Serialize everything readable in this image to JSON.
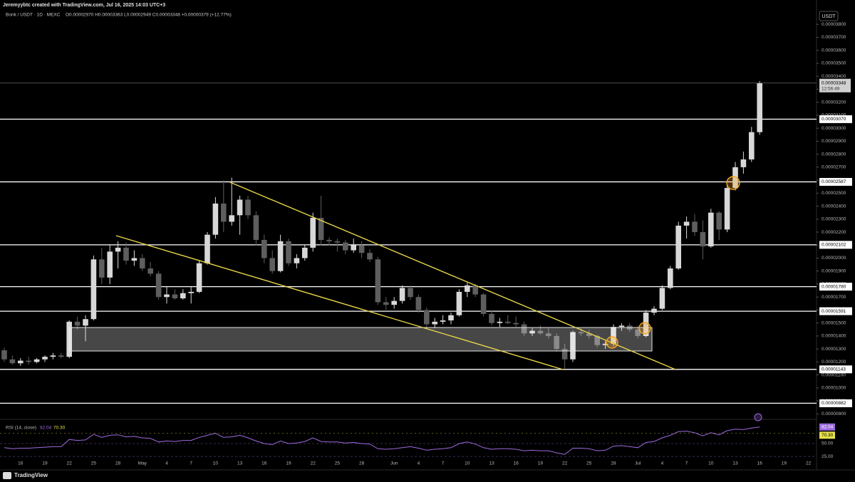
{
  "chart_data": {
    "type": "candlestick",
    "header": "Jeremyybtc created with TradingView.com, Jul 16, 2025 14:03 UTC+3",
    "symbol": "Bonk / USDT · 1D · MEXC",
    "ohlc": "O0.00002970 H0.00003363 L0.00002949 C0.00003348 +0.00000379 (+12.77%)",
    "currency": "USDT",
    "brand": "TradingView",
    "up_color": "#d8d8d8",
    "down_color": "#5e5e5e",
    "level_color": "#ffffff",
    "categories": [
      null,
      null,
      "16",
      null,
      null,
      "19",
      null,
      null,
      "22",
      null,
      null,
      "25",
      null,
      null,
      "28",
      null,
      null,
      "May",
      null,
      null,
      "4",
      null,
      null,
      "7",
      null,
      null,
      "10",
      null,
      null,
      "13",
      null,
      null,
      "16",
      null,
      null,
      "19",
      null,
      null,
      "22",
      null,
      null,
      "25",
      null,
      null,
      "28",
      null,
      null,
      null,
      "Jun",
      null,
      null,
      "4",
      null,
      null,
      "7",
      null,
      null,
      "10",
      null,
      null,
      "13",
      null,
      null,
      "16",
      null,
      null,
      "19",
      null,
      null,
      "22",
      null,
      null,
      "25",
      null,
      null,
      "28",
      null,
      null,
      "Jul",
      null,
      null,
      "4",
      null,
      null,
      "7",
      null,
      null,
      "10",
      null,
      null,
      "13",
      null,
      null,
      "16",
      null,
      null,
      "19",
      null,
      null,
      "22"
    ],
    "open": [
      1.29e-05,
      1.22e-05,
      1.19e-05,
      1.21e-05,
      1.2e-05,
      1.22e-05,
      1.24e-05,
      1.25e-05,
      1.24e-05,
      1.51e-05,
      1.48e-05,
      1.53e-05,
      1.99e-05,
      1.85e-05,
      2.05e-05,
      2.08e-05,
      1.98e-05,
      2e-05,
      1.92e-05,
      1.88e-05,
      1.7e-05,
      1.72e-05,
      1.69e-05,
      1.73e-05,
      1.74e-05,
      1.96e-05,
      2.18e-05,
      2.42e-05,
      2.28e-05,
      2.33e-05,
      2.45e-05,
      2.33e-05,
      2.14e-05,
      2e-05,
      1.9e-05,
      2.13e-05,
      1.96e-05,
      2e-05,
      2.08e-05,
      2.31e-05,
      2.14e-05,
      2.13e-05,
      2.12e-05,
      2.06e-05,
      2.1e-05,
      2.04e-05,
      1.99e-05,
      1.66e-05,
      1.64e-05,
      1.67e-05,
      1.77e-05,
      1.7e-05,
      1.6e-05,
      1.49e-05,
      1.51e-05,
      1.52e-05,
      1.56e-05,
      1.74e-05,
      1.79e-05,
      1.72e-05,
      1.57e-05,
      1.5e-05,
      1.51e-05,
      1.5e-05,
      1.49e-05,
      1.42e-05,
      1.44e-05,
      1.42e-05,
      1.4e-05,
      1.3e-05,
      1.22e-05,
      1.43e-05,
      1.42e-05,
      1.4e-05,
      1.33e-05,
      1.34e-05,
      1.47e-05,
      1.48e-05,
      1.45e-05,
      1.4e-05,
      1.58e-05,
      1.61e-05,
      1.77e-05,
      1.92e-05,
      2.25e-05,
      2.28e-05,
      2.2e-05,
      2.09e-05,
      2.35e-05,
      2.22e-05,
      2.54e-05,
      2.7e-05,
      2.76e-05,
      2.97e-05,
      null,
      null,
      null,
      null,
      null,
      null
    ],
    "high": [
      1.31e-05,
      1.25e-05,
      1.23e-05,
      1.24e-05,
      1.23e-05,
      1.25e-05,
      1.27e-05,
      1.27e-05,
      1.52e-05,
      1.55e-05,
      1.56e-05,
      2.02e-05,
      2.08e-05,
      2.1e-05,
      2.13e-05,
      2.12e-05,
      2.06e-05,
      2.03e-05,
      1.97e-05,
      1.9e-05,
      1.78e-05,
      1.76e-05,
      1.76e-05,
      1.78e-05,
      1.98e-05,
      2.2e-05,
      2.47e-05,
      2.6e-05,
      2.62e-05,
      2.48e-05,
      2.48e-05,
      2.36e-05,
      2.18e-05,
      2.06e-05,
      2.18e-05,
      2.15e-05,
      2.03e-05,
      2.1e-05,
      2.35e-05,
      2.48e-05,
      2.16e-05,
      2.15e-05,
      2.14e-05,
      2.15e-05,
      2.13e-05,
      2.07e-05,
      2.01e-05,
      1.7e-05,
      1.7e-05,
      1.79e-05,
      1.79e-05,
      1.72e-05,
      1.62e-05,
      1.54e-05,
      1.56e-05,
      1.58e-05,
      1.76e-05,
      1.81e-05,
      1.8e-05,
      1.73e-05,
      1.6e-05,
      1.54e-05,
      1.56e-05,
      1.55e-05,
      1.51e-05,
      1.46e-05,
      1.48e-05,
      1.46e-05,
      1.42e-05,
      1.34e-05,
      1.44e-05,
      1.46e-05,
      1.45e-05,
      1.41e-05,
      1.36e-05,
      1.49e-05,
      1.5e-05,
      1.5e-05,
      1.48e-05,
      1.6e-05,
      1.63e-05,
      1.79e-05,
      1.94e-05,
      2.28e-05,
      2.32e-05,
      2.34e-05,
      2.29e-05,
      2.38e-05,
      2.36e-05,
      2.57e-05,
      2.74e-05,
      2.82e-05,
      3.01e-05,
      3.363e-05,
      null,
      null,
      null,
      null,
      null,
      null
    ],
    "low": [
      1.2e-05,
      1.18e-05,
      1.17e-05,
      1.18e-05,
      1.19e-05,
      1.2e-05,
      1.22e-05,
      1.23e-05,
      1.23e-05,
      1.45e-05,
      1.36e-05,
      1.52e-05,
      1.8e-05,
      1.8e-05,
      1.92e-05,
      1.95e-05,
      1.94e-05,
      1.9e-05,
      1.86e-05,
      1.68e-05,
      1.65e-05,
      1.68e-05,
      1.68e-05,
      1.65e-05,
      1.73e-05,
      1.95e-05,
      2.15e-05,
      2.2e-05,
      2.25e-05,
      2.18e-05,
      2.3e-05,
      2.1e-05,
      1.96e-05,
      1.88e-05,
      1.89e-05,
      1.94e-05,
      1.92e-05,
      1.98e-05,
      2.05e-05,
      2.1e-05,
      2.1e-05,
      2.05e-05,
      2.03e-05,
      2.04e-05,
      2e-05,
      1.97e-05,
      1.64e-05,
      1.6e-05,
      1.61e-05,
      1.65e-05,
      1.68e-05,
      1.58e-05,
      1.46e-05,
      1.46e-05,
      1.49e-05,
      1.49e-05,
      1.55e-05,
      1.7e-05,
      1.7e-05,
      1.55e-05,
      1.48e-05,
      1.47e-05,
      1.49e-05,
      1.47e-05,
      1.4e-05,
      1.4e-05,
      1.41e-05,
      1.38e-05,
      1.28e-05,
      1.15e-05,
      1.2e-05,
      1.4e-05,
      1.38e-05,
      1.31e-05,
      1.3e-05,
      1.32e-05,
      1.44e-05,
      1.43e-05,
      1.38e-05,
      1.39e-05,
      1.56e-05,
      1.6e-05,
      1.76e-05,
      1.91e-05,
      2.15e-05,
      2.17e-05,
      1.99e-05,
      2.08e-05,
      2.14e-05,
      2.2e-05,
      2.52e-05,
      2.65e-05,
      2.74e-05,
      2.949e-05,
      null,
      null,
      null,
      null,
      null,
      null
    ],
    "close": [
      1.22e-05,
      1.19e-05,
      1.21e-05,
      1.2e-05,
      1.22e-05,
      1.24e-05,
      1.25e-05,
      1.24e-05,
      1.51e-05,
      1.48e-05,
      1.53e-05,
      1.99e-05,
      1.85e-05,
      2.05e-05,
      2.08e-05,
      1.98e-05,
      2e-05,
      1.92e-05,
      1.88e-05,
      1.7e-05,
      1.72e-05,
      1.69e-05,
      1.73e-05,
      1.74e-05,
      1.96e-05,
      2.18e-05,
      2.42e-05,
      2.28e-05,
      2.33e-05,
      2.45e-05,
      2.33e-05,
      2.14e-05,
      2e-05,
      1.9e-05,
      2.13e-05,
      1.96e-05,
      2e-05,
      2.08e-05,
      2.31e-05,
      2.14e-05,
      2.13e-05,
      2.12e-05,
      2.06e-05,
      2.1e-05,
      2.04e-05,
      1.99e-05,
      1.66e-05,
      1.64e-05,
      1.67e-05,
      1.77e-05,
      1.7e-05,
      1.6e-05,
      1.49e-05,
      1.51e-05,
      1.52e-05,
      1.56e-05,
      1.74e-05,
      1.79e-05,
      1.72e-05,
      1.57e-05,
      1.5e-05,
      1.51e-05,
      1.5e-05,
      1.49e-05,
      1.42e-05,
      1.44e-05,
      1.42e-05,
      1.4e-05,
      1.3e-05,
      1.22e-05,
      1.43e-05,
      1.42e-05,
      1.4e-05,
      1.33e-05,
      1.34e-05,
      1.47e-05,
      1.48e-05,
      1.45e-05,
      1.4e-05,
      1.58e-05,
      1.61e-05,
      1.77e-05,
      1.92e-05,
      2.25e-05,
      2.28e-05,
      2.2e-05,
      2.09e-05,
      2.35e-05,
      2.22e-05,
      2.54e-05,
      2.7e-05,
      2.76e-05,
      2.97e-05,
      3.348e-05,
      null,
      null,
      null,
      null,
      null,
      null
    ],
    "ylim": [
      7.8e-06,
      3.9e-05
    ],
    "yticks": [
      {
        "value": 8e-06,
        "label": "0.00000800"
      },
      {
        "value": 9e-06,
        "label": "0.00000900"
      },
      {
        "value": 1e-05,
        "label": "0.00001000"
      },
      {
        "value": 1.1e-05,
        "label": "0.00001100"
      },
      {
        "value": 1.2e-05,
        "label": "0.00001200"
      },
      {
        "value": 1.3e-05,
        "label": "0.00001300"
      },
      {
        "value": 1.4e-05,
        "label": "0.00001400"
      },
      {
        "value": 1.5e-05,
        "label": "0.00001500"
      },
      {
        "value": 1.6e-05,
        "label": "0.00001600"
      },
      {
        "value": 1.7e-05,
        "label": "0.00001700"
      },
      {
        "value": 1.8e-05,
        "label": "0.00001800"
      },
      {
        "value": 1.9e-05,
        "label": "0.00001900"
      },
      {
        "value": 2e-05,
        "label": "0.00002000"
      },
      {
        "value": 2.1e-05,
        "label": "0.00002100"
      },
      {
        "value": 2.2e-05,
        "label": "0.00002200"
      },
      {
        "value": 2.3e-05,
        "label": "0.00002300"
      },
      {
        "value": 2.4e-05,
        "label": "0.00002400"
      },
      {
        "value": 2.5e-05,
        "label": "0.00002500"
      },
      {
        "value": 2.6e-05,
        "label": "0.00002600"
      },
      {
        "value": 2.7e-05,
        "label": "0.00002700"
      },
      {
        "value": 2.8e-05,
        "label": "0.00002800"
      },
      {
        "value": 2.9e-05,
        "label": "0.00002900"
      },
      {
        "value": 3e-05,
        "label": "0.00003000"
      },
      {
        "value": 3.1e-05,
        "label": "0.00003100"
      },
      {
        "value": 3.2e-05,
        "label": "0.00003200"
      },
      {
        "value": 3.3e-05,
        "label": "0.00003300"
      },
      {
        "value": 3.4e-05,
        "label": "0.00003400"
      },
      {
        "value": 3.5e-05,
        "label": "0.00003500"
      },
      {
        "value": 3.6e-05,
        "label": "0.00003600"
      },
      {
        "value": 3.7e-05,
        "label": "0.00003700"
      },
      {
        "value": 3.8e-05,
        "label": "0.00003800"
      }
    ],
    "levels": [
      {
        "value": 3.07e-05,
        "label": "0.00003070"
      },
      {
        "value": 2.587e-05,
        "label": "0.00002587"
      },
      {
        "value": 2.102e-05,
        "label": "0.00002102"
      },
      {
        "value": 1.78e-05,
        "label": "0.00001780"
      },
      {
        "value": 1.591e-05,
        "label": "0.00001591"
      },
      {
        "value": 1.143e-05,
        "label": "0.00001143"
      },
      {
        "value": 8.82e-06,
        "label": "0.00000882"
      }
    ],
    "last_price": {
      "value": 3.348e-05,
      "label": "0.00003348",
      "countdown": "12:56:49"
    },
    "rsi": {
      "title": "RSI (14, close)",
      "value": {
        "value": 82.04,
        "label": "82.04"
      },
      "ma": {
        "value": 70.3,
        "label": "70.30"
      },
      "color": "#9c6ade",
      "ma_color": "#e6e04a",
      "values": [
        42,
        40,
        41,
        41,
        42,
        43,
        44,
        44,
        58,
        56,
        57,
        68,
        62,
        66,
        67,
        63,
        64,
        61,
        60,
        53,
        55,
        54,
        56,
        56,
        62,
        66,
        70,
        62,
        63,
        66,
        61,
        55,
        50,
        48,
        55,
        50,
        51,
        54,
        61,
        54,
        53,
        53,
        51,
        52,
        50,
        49,
        40,
        39,
        40,
        42,
        44,
        41,
        37,
        39,
        40,
        42,
        50,
        53,
        49,
        42,
        39,
        40,
        40,
        39,
        36,
        37,
        36,
        36,
        32,
        29,
        41,
        41,
        40,
        36,
        37,
        45,
        46,
        44,
        42,
        52,
        54,
        61,
        66,
        73,
        74,
        71,
        65,
        71,
        67,
        75,
        78,
        77,
        80,
        82.04,
        null,
        null,
        null,
        null,
        null,
        null
      ],
      "ylim": [
        10,
        90
      ],
      "yticks": [
        {
          "value": 50,
          "label": "50.00"
        },
        {
          "value": 25,
          "label": "25.00"
        }
      ]
    }
  }
}
